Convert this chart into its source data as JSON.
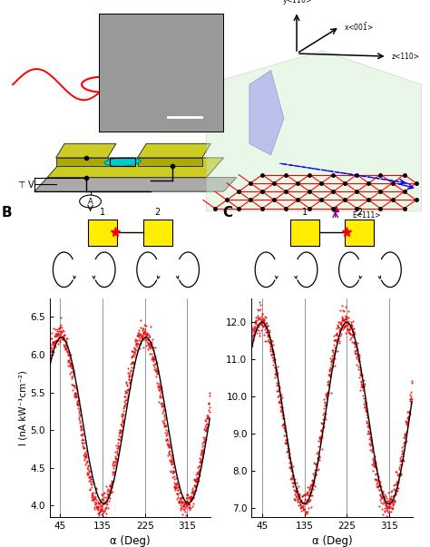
{
  "panel_B": {
    "label": "B",
    "ylabel": "I (nA kW⁻¹cm⁻²)",
    "xlabel": "α (Deg)",
    "ylim": [
      3.85,
      6.75
    ],
    "yticks": [
      4.0,
      4.5,
      5.0,
      5.5,
      6.0,
      6.5
    ],
    "xticks": [
      45,
      135,
      225,
      315
    ],
    "vlines": [
      45,
      135,
      225,
      315
    ],
    "data_color": "#ee0000",
    "fit_color": "#000000",
    "mean": 5.13,
    "amp_data": 1.15,
    "phi_data": -1.45,
    "amp_fit": 1.1,
    "phi_fit": -1.65,
    "noise": 0.08
  },
  "panel_C": {
    "label": "C",
    "xlabel": "α (Deg)",
    "ylim": [
      6.75,
      12.65
    ],
    "yticks": [
      7.0,
      8.0,
      9.0,
      10.0,
      11.0,
      12.0
    ],
    "xticks": [
      45,
      135,
      225,
      315
    ],
    "vlines": [
      45,
      135,
      225,
      315
    ],
    "data_color": "#ee0000",
    "fit_color": "#000000",
    "mean": 9.55,
    "amp_data": 2.5,
    "phi_data": -1.45,
    "amp_fit": 2.45,
    "phi_fit": -1.55,
    "noise": 0.18
  },
  "background_color": "#ffffff",
  "electrode_yellow": "#ffee00",
  "star_red": "#ff0000"
}
